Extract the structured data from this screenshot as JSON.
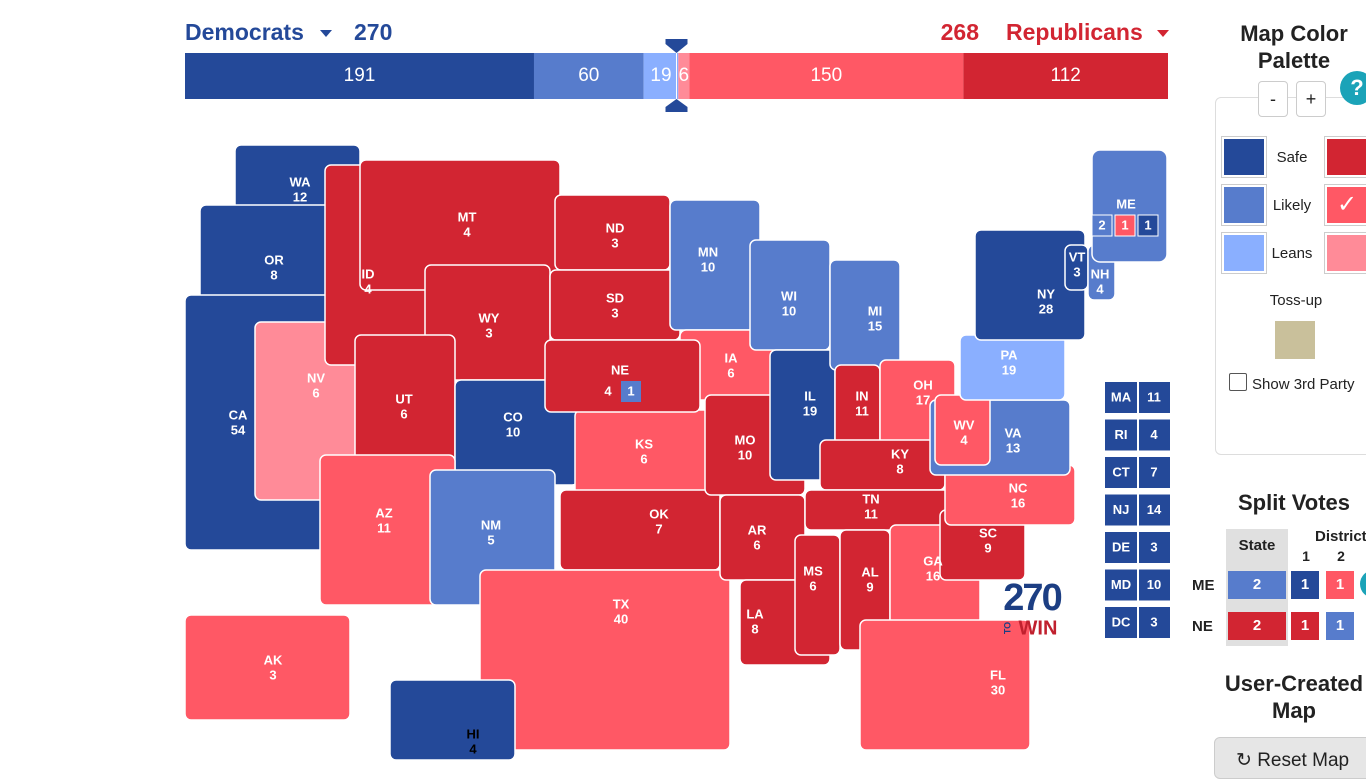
{
  "header": {
    "dem_label": "Democrats",
    "dem_total": 270,
    "rep_total": 268,
    "rep_label": "Republicans"
  },
  "bar": {
    "segments": [
      {
        "value": 191,
        "color": "#244999"
      },
      {
        "value": 60,
        "color": "#577ccc"
      },
      {
        "value": 19,
        "color": "#8aafff"
      },
      {
        "value": 6,
        "color": "#ff8b98"
      },
      {
        "value": 150,
        "color": "#ff5865"
      },
      {
        "value": 112,
        "color": "#d22532"
      }
    ]
  },
  "states": [
    {
      "abbr": "WA",
      "ev": 12,
      "color": "#244999"
    },
    {
      "abbr": "OR",
      "ev": 8,
      "color": "#244999"
    },
    {
      "abbr": "CA",
      "ev": 54,
      "color": "#244999"
    },
    {
      "abbr": "NV",
      "ev": 6,
      "color": "#ff8b98"
    },
    {
      "abbr": "ID",
      "ev": 4,
      "color": "#d22532"
    },
    {
      "abbr": "MT",
      "ev": 4,
      "color": "#d22532"
    },
    {
      "abbr": "WY",
      "ev": 3,
      "color": "#d22532"
    },
    {
      "abbr": "UT",
      "ev": 6,
      "color": "#d22532"
    },
    {
      "abbr": "CO",
      "ev": 10,
      "color": "#244999"
    },
    {
      "abbr": "AZ",
      "ev": 11,
      "color": "#ff5865"
    },
    {
      "abbr": "NM",
      "ev": 5,
      "color": "#577ccc"
    },
    {
      "abbr": "ND",
      "ev": 3,
      "color": "#d22532"
    },
    {
      "abbr": "SD",
      "ev": 3,
      "color": "#d22532"
    },
    {
      "abbr": "KS",
      "ev": 6,
      "color": "#ff5865"
    },
    {
      "abbr": "OK",
      "ev": 7,
      "color": "#d22532"
    },
    {
      "abbr": "TX",
      "ev": 40,
      "color": "#ff5865"
    },
    {
      "abbr": "MN",
      "ev": 10,
      "color": "#577ccc"
    },
    {
      "abbr": "IA",
      "ev": 6,
      "color": "#ff5865"
    },
    {
      "abbr": "MO",
      "ev": 10,
      "color": "#d22532"
    },
    {
      "abbr": "AR",
      "ev": 6,
      "color": "#d22532"
    },
    {
      "abbr": "LA",
      "ev": 8,
      "color": "#d22532"
    },
    {
      "abbr": "WI",
      "ev": 10,
      "color": "#577ccc"
    },
    {
      "abbr": "IL",
      "ev": 19,
      "color": "#244999"
    },
    {
      "abbr": "MI",
      "ev": 15,
      "color": "#577ccc"
    },
    {
      "abbr": "IN",
      "ev": 11,
      "color": "#d22532"
    },
    {
      "abbr": "OH",
      "ev": 17,
      "color": "#ff5865"
    },
    {
      "abbr": "KY",
      "ev": 8,
      "color": "#d22532"
    },
    {
      "abbr": "TN",
      "ev": 11,
      "color": "#d22532"
    },
    {
      "abbr": "MS",
      "ev": 6,
      "color": "#d22532"
    },
    {
      "abbr": "AL",
      "ev": 9,
      "color": "#d22532"
    },
    {
      "abbr": "GA",
      "ev": 16,
      "color": "#ff5865"
    },
    {
      "abbr": "FL",
      "ev": 30,
      "color": "#ff5865"
    },
    {
      "abbr": "SC",
      "ev": 9,
      "color": "#d22532"
    },
    {
      "abbr": "NC",
      "ev": 16,
      "color": "#ff5865"
    },
    {
      "abbr": "VA",
      "ev": 13,
      "color": "#577ccc"
    },
    {
      "abbr": "WV",
      "ev": 4,
      "color": "#ff5865"
    },
    {
      "abbr": "PA",
      "ev": 19,
      "color": "#8aafff"
    },
    {
      "abbr": "NY",
      "ev": 28,
      "color": "#244999"
    },
    {
      "abbr": "VT",
      "ev": 3,
      "color": "#244999"
    },
    {
      "abbr": "NH",
      "ev": 4,
      "color": "#577ccc"
    },
    {
      "abbr": "AK",
      "ev": 3,
      "color": "#ff5865"
    },
    {
      "abbr": "HI",
      "ev": 4,
      "color": "#244999"
    }
  ],
  "maine": {
    "abbr": "ME",
    "color": "#577ccc",
    "districts": [
      {
        "value": 2,
        "color": "#577ccc"
      },
      {
        "value": 1,
        "color": "#ff5865"
      },
      {
        "value": 1,
        "color": "#244999"
      }
    ]
  },
  "nebraska": {
    "abbr": "NE",
    "ev": 4,
    "color": "#d22532",
    "district": {
      "value": 1,
      "color": "#577ccc"
    }
  },
  "small_states": [
    {
      "abbr": "MA",
      "ev": 11
    },
    {
      "abbr": "RI",
      "ev": 4
    },
    {
      "abbr": "CT",
      "ev": 7
    },
    {
      "abbr": "NJ",
      "ev": 14
    },
    {
      "abbr": "DE",
      "ev": 3
    },
    {
      "abbr": "MD",
      "ev": 10
    },
    {
      "abbr": "DC",
      "ev": 3
    }
  ],
  "small_states_color": "#244999",
  "logo": {
    "number": "270",
    "to": "TO",
    "win": "WIN"
  },
  "palette": {
    "title": "Map Color Palette",
    "minus": "-",
    "plus": "+",
    "help": "?",
    "rows": [
      {
        "label": "Safe",
        "colors": [
          "#244999",
          "#d22532"
        ]
      },
      {
        "label": "Likely",
        "colors": [
          "#577ccc",
          "#ff5865"
        ]
      },
      {
        "label": "Leans",
        "colors": [
          "#8aafff",
          "#ff8b98"
        ]
      }
    ],
    "selected_mark": "✓",
    "tossup_label": "Toss-up",
    "tossup_color": "#c9c09b",
    "third_party": "Show 3rd Party"
  },
  "split_votes": {
    "title": "Split Votes",
    "state_header": "State",
    "districts_header": "Districts",
    "district_numbers": [
      1,
      2
    ],
    "rows": [
      {
        "state": "ME",
        "cells": [
          {
            "value": 2,
            "color": "#577ccc"
          },
          {
            "value": 1,
            "color": "#244999"
          },
          {
            "value": 1,
            "color": "#ff5865"
          }
        ]
      },
      {
        "state": "NE",
        "cells": [
          {
            "value": 2,
            "color": "#d22532"
          },
          {
            "value": 1,
            "color": "#d22532"
          },
          {
            "value": 1,
            "color": "#577ccc"
          }
        ]
      }
    ]
  },
  "user_map": {
    "title": "User-Created Map",
    "reset": "Reset Map"
  }
}
